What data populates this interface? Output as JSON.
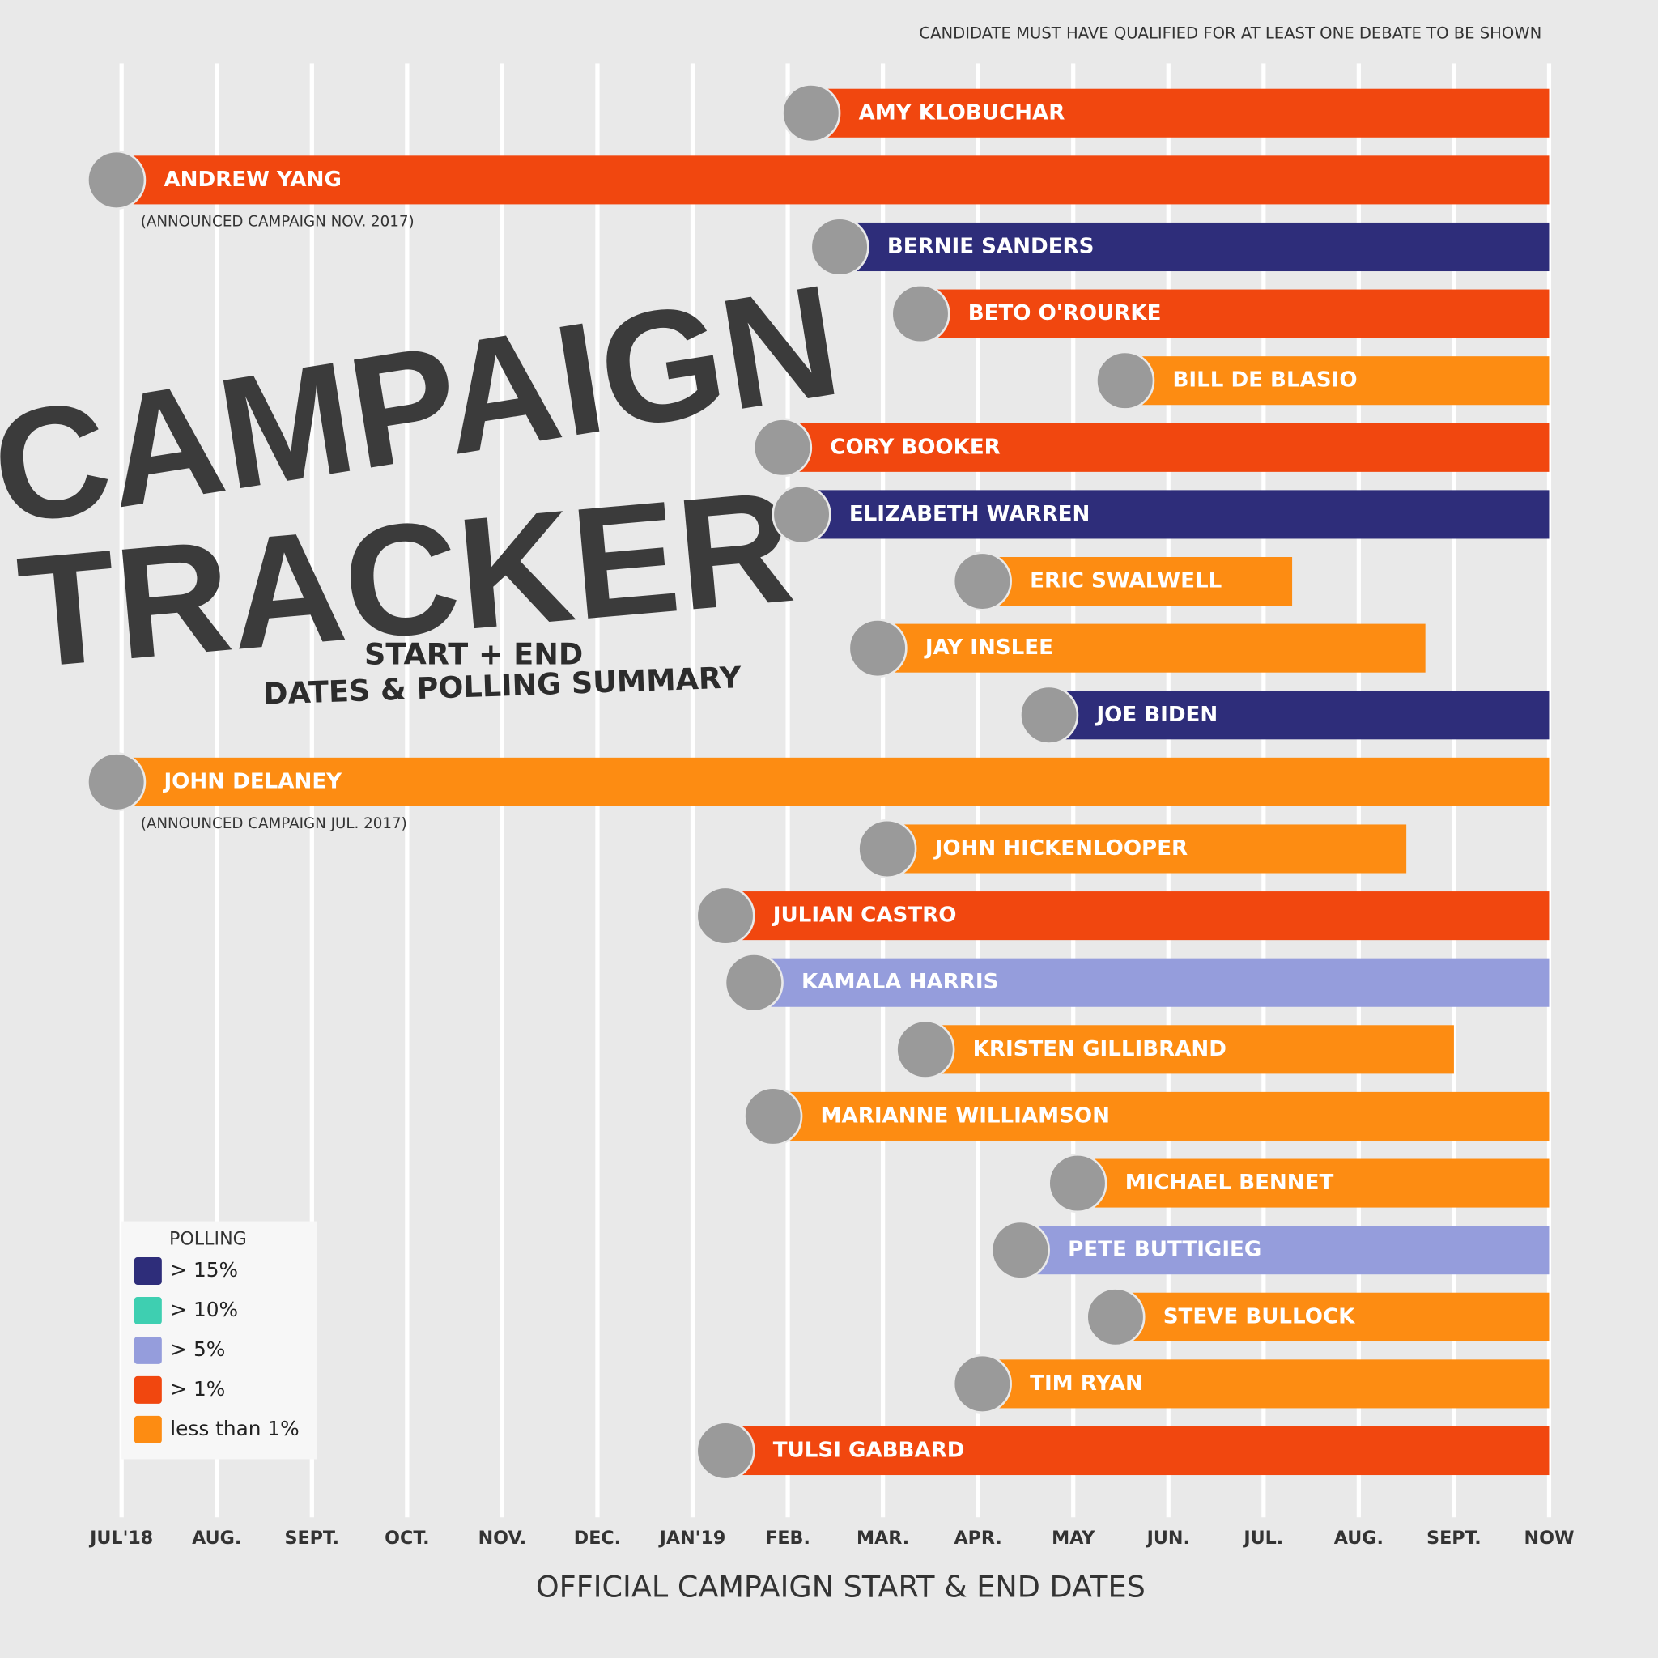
{
  "chart_data": {
    "type": "gantt",
    "title": [
      "CAMPAIGN",
      "TRACKER"
    ],
    "subtitle": [
      "START + END",
      "DATES & POLLING SUMMARY"
    ],
    "note": "CANDIDATE MUST HAVE QUALIFIED FOR AT LEAST ONE DEBATE TO BE SHOWN",
    "x_label": "OFFICIAL CAMPAIGN START & END DATES",
    "xlim": [
      0,
      15
    ],
    "xticks": [
      {
        "value": 0,
        "label": "JUL'18"
      },
      {
        "value": 1,
        "label": "AUG."
      },
      {
        "value": 2,
        "label": "SEPT."
      },
      {
        "value": 3,
        "label": "OCT."
      },
      {
        "value": 4,
        "label": "NOV."
      },
      {
        "value": 5,
        "label": "DEC."
      },
      {
        "value": 6,
        "label": "JAN'19"
      },
      {
        "value": 7,
        "label": "FEB."
      },
      {
        "value": 8,
        "label": "MAR."
      },
      {
        "value": 9,
        "label": "APR."
      },
      {
        "value": 10,
        "label": "MAY"
      },
      {
        "value": 11,
        "label": "JUN."
      },
      {
        "value": 12,
        "label": "JUL."
      },
      {
        "value": 13,
        "label": "AUG."
      },
      {
        "value": 14,
        "label": "SEPT."
      },
      {
        "value": 15,
        "label": "NOW"
      }
    ],
    "grid": true,
    "legend": {
      "title": "POLLING",
      "position": "lower left",
      "items": [
        {
          "label": "> 15%",
          "color": "#2e2d7a"
        },
        {
          "label": "> 10%",
          "color": "#3ecfb1"
        },
        {
          "label": "> 5%",
          "color": "#959ddc"
        },
        {
          "label": "> 1%",
          "color": "#f1470f"
        },
        {
          "label": "less than 1%",
          "color": "#fd8c12"
        }
      ]
    },
    "series": [
      {
        "name": "AMY KLOBUCHAR",
        "color": "#f1470f",
        "values": [
          7.3,
          15
        ]
      },
      {
        "name": "ANDREW YANG",
        "color": "#f1470f",
        "values": [
          0,
          15
        ],
        "note": "(ANNOUNCED CAMPAIGN NOV. 2017)"
      },
      {
        "name": "BERNIE SANDERS",
        "color": "#2e2d7a",
        "values": [
          7.6,
          15
        ]
      },
      {
        "name": "BETO O'ROURKE",
        "color": "#f1470f",
        "values": [
          8.45,
          15
        ]
      },
      {
        "name": "BILL DE BLASIO",
        "color": "#fd8c12",
        "values": [
          10.6,
          15
        ]
      },
      {
        "name": "CORY BOOKER",
        "color": "#f1470f",
        "values": [
          7.0,
          15
        ]
      },
      {
        "name": "ELIZABETH WARREN",
        "color": "#2e2d7a",
        "values": [
          7.2,
          15
        ]
      },
      {
        "name": "ERIC SWALWELL",
        "color": "#fd8c12",
        "values": [
          9.1,
          12.3
        ]
      },
      {
        "name": "JAY INSLEE",
        "color": "#fd8c12",
        "values": [
          8.0,
          13.7
        ]
      },
      {
        "name": "JOE BIDEN",
        "color": "#2e2d7a",
        "values": [
          9.8,
          15
        ]
      },
      {
        "name": "JOHN DELANEY",
        "color": "#fd8c12",
        "values": [
          0,
          15
        ],
        "note": "(ANNOUNCED CAMPAIGN JUL. 2017)"
      },
      {
        "name": "JOHN HICKENLOOPER",
        "color": "#fd8c12",
        "values": [
          8.1,
          13.5
        ]
      },
      {
        "name": "JULIAN CASTRO",
        "color": "#f1470f",
        "values": [
          6.4,
          15
        ]
      },
      {
        "name": "KAMALA HARRIS",
        "color": "#959ddc",
        "values": [
          6.7,
          15
        ]
      },
      {
        "name": "KRISTEN GILLIBRAND",
        "color": "#fd8c12",
        "values": [
          8.5,
          14.0
        ]
      },
      {
        "name": "MARIANNE WILLIAMSON",
        "color": "#fd8c12",
        "values": [
          6.9,
          15
        ]
      },
      {
        "name": "MICHAEL BENNET",
        "color": "#fd8c12",
        "values": [
          10.1,
          15
        ]
      },
      {
        "name": "PETE BUTTIGIEG",
        "color": "#959ddc",
        "values": [
          9.5,
          15
        ]
      },
      {
        "name": "STEVE BULLOCK",
        "color": "#fd8c12",
        "values": [
          10.5,
          15
        ]
      },
      {
        "name": "TIM RYAN",
        "color": "#fd8c12",
        "values": [
          9.1,
          15
        ]
      },
      {
        "name": "TULSI GABBARD",
        "color": "#f1470f",
        "values": [
          6.4,
          15
        ]
      }
    ]
  }
}
